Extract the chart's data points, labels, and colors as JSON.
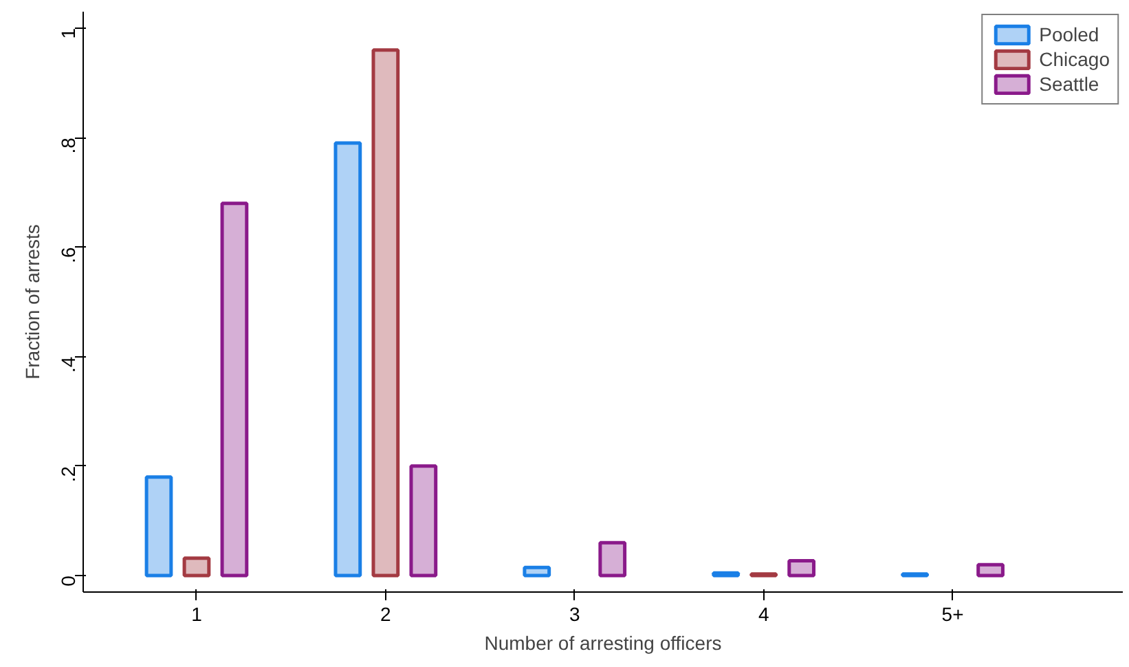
{
  "chart_data": {
    "type": "bar",
    "xlabel": "Number of arresting officers",
    "ylabel": "Fraction of arrests",
    "categories": [
      "1",
      "2",
      "3",
      "4",
      "5+"
    ],
    "series": [
      {
        "name": "Pooled",
        "color": "#1a7fe6",
        "values": [
          0.18,
          0.79,
          0.015,
          0.005,
          0.003
        ]
      },
      {
        "name": "Chicago",
        "color": "#a33a42",
        "values": [
          0.032,
          0.96,
          null,
          0.003,
          null
        ]
      },
      {
        "name": "Seattle",
        "color": "#8a1a8a",
        "values": [
          0.68,
          0.2,
          0.06,
          0.027,
          0.02
        ]
      }
    ],
    "ylim": [
      -0.03,
      1.03
    ],
    "yticks": [
      {
        "value": 0,
        "label": "0"
      },
      {
        "value": 0.2,
        "label": ".2"
      },
      {
        "value": 0.4,
        "label": ".4"
      },
      {
        "value": 0.6,
        "label": ".6"
      },
      {
        "value": 0.8,
        "label": ".8"
      },
      {
        "value": 1,
        "label": "1"
      }
    ],
    "grid": false,
    "legend": "top right"
  }
}
